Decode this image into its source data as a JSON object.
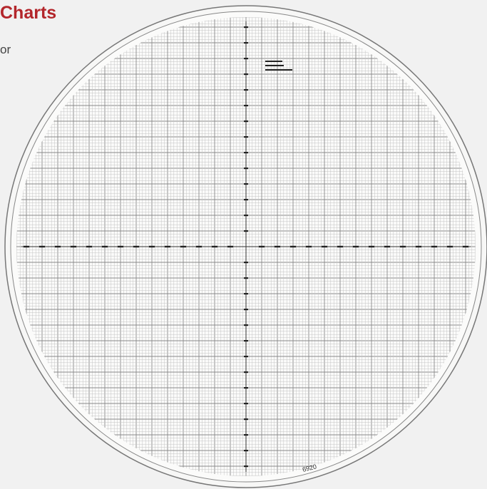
{
  "header": {
    "title": "Charts",
    "text": "or"
  },
  "chart": {
    "part_number": "6920"
  }
}
